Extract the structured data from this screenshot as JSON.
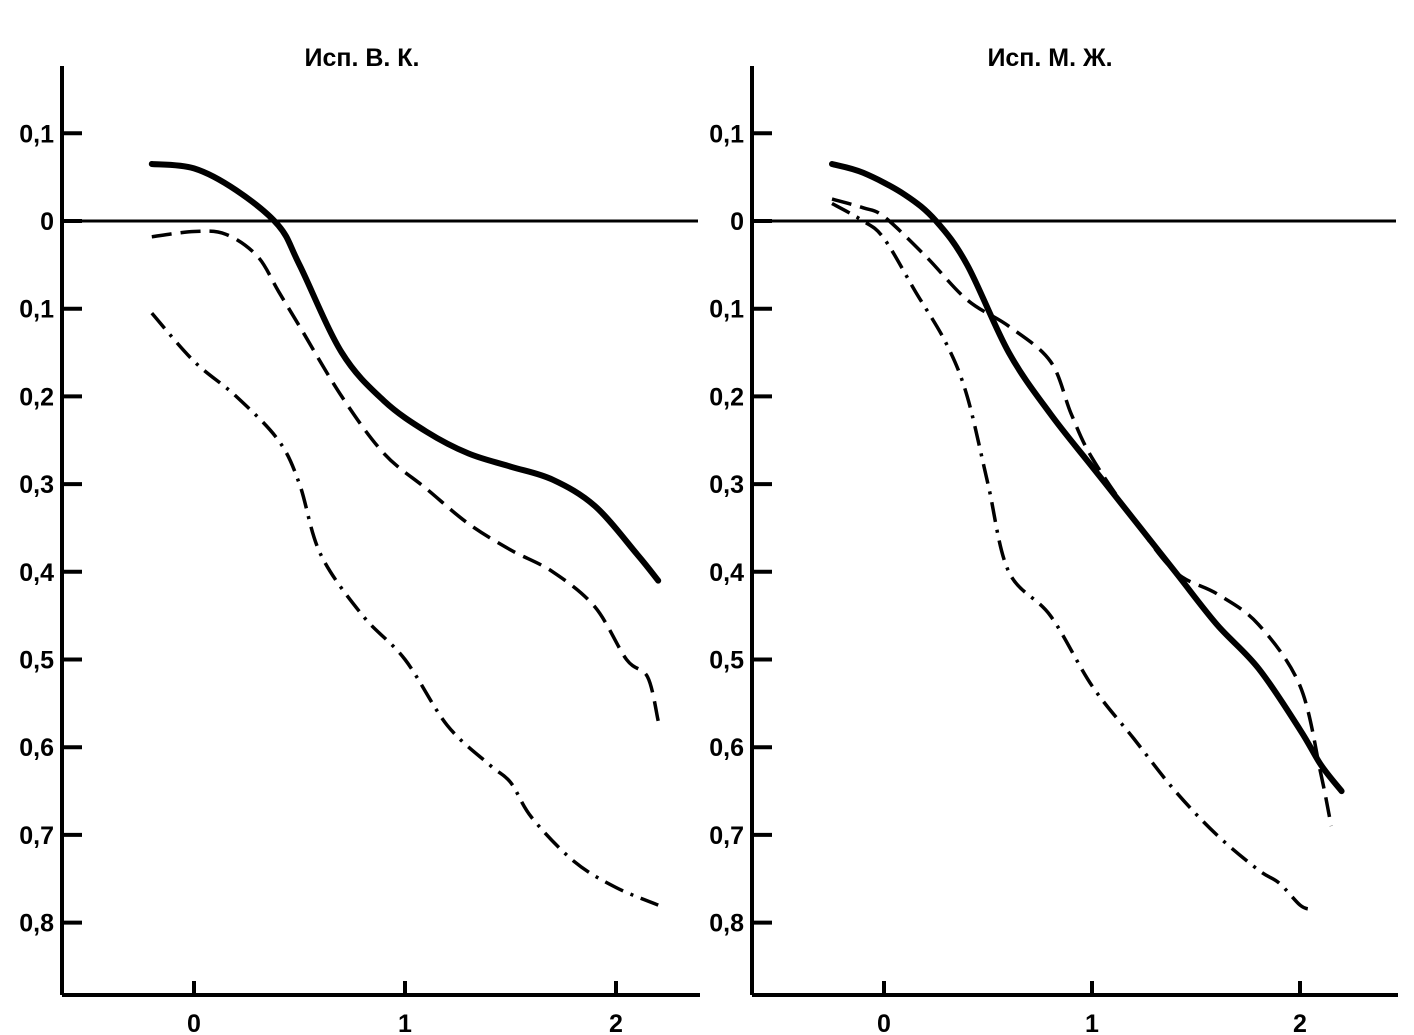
{
  "chart_data": [
    {
      "type": "line",
      "title": "Исп. В. К.",
      "xlabel": "",
      "ylabel": "",
      "xlim": [
        -0.63,
        2.4
      ],
      "ylim": [
        -0.89,
        0.18
      ],
      "x_ticks": [
        0,
        1,
        2
      ],
      "x_tick_labels": [
        "0",
        "1",
        "2"
      ],
      "y_ticks": [
        0.1,
        0,
        -0.1,
        -0.2,
        -0.3,
        -0.4,
        -0.5,
        -0.6,
        -0.7,
        -0.8
      ],
      "y_tick_labels": [
        "0,1",
        "0",
        "0,1",
        "0,2",
        "0,3",
        "0,4",
        "0,5",
        "0,6",
        "0,7",
        "0,8"
      ],
      "zero_line": true,
      "grid": false,
      "series": [
        {
          "style": "solid",
          "x": [
            -0.2,
            0.0,
            0.2,
            0.4,
            0.5,
            0.7,
            0.9,
            1.1,
            1.3,
            1.5,
            1.7,
            1.9,
            2.1,
            2.2
          ],
          "y": [
            0.065,
            0.06,
            0.035,
            -0.005,
            -0.05,
            -0.15,
            -0.205,
            -0.24,
            -0.265,
            -0.28,
            -0.295,
            -0.325,
            -0.38,
            -0.41
          ]
        },
        {
          "style": "dashed",
          "x": [
            -0.2,
            0.0,
            0.15,
            0.3,
            0.4,
            0.5,
            0.7,
            0.9,
            1.1,
            1.3,
            1.5,
            1.7,
            1.9,
            2.05,
            2.15,
            2.2
          ],
          "y": [
            -0.018,
            -0.012,
            -0.015,
            -0.04,
            -0.08,
            -0.12,
            -0.2,
            -0.265,
            -0.305,
            -0.345,
            -0.375,
            -0.4,
            -0.44,
            -0.5,
            -0.52,
            -0.57
          ]
        },
        {
          "style": "dash-dot",
          "x": [
            -0.2,
            0.0,
            0.2,
            0.4,
            0.5,
            0.6,
            0.8,
            1.0,
            1.2,
            1.4,
            1.5,
            1.6,
            1.8,
            2.0,
            2.2
          ],
          "y": [
            -0.105,
            -0.16,
            -0.2,
            -0.25,
            -0.3,
            -0.38,
            -0.45,
            -0.5,
            -0.575,
            -0.62,
            -0.64,
            -0.68,
            -0.73,
            -0.76,
            -0.78
          ]
        }
      ]
    },
    {
      "type": "line",
      "title": "Исп. М. Ж.",
      "xlabel": "",
      "ylabel": "",
      "xlim": [
        -0.63,
        2.4
      ],
      "ylim": [
        -0.89,
        0.18
      ],
      "x_ticks": [
        0,
        1,
        2
      ],
      "x_tick_labels": [
        "0",
        "1",
        "2"
      ],
      "y_ticks": [
        0.1,
        0,
        -0.1,
        -0.2,
        -0.3,
        -0.4,
        -0.5,
        -0.6,
        -0.7,
        -0.8
      ],
      "y_tick_labels": [
        "0,1",
        "0",
        "0,1",
        "0,2",
        "0,3",
        "0,4",
        "0,5",
        "0,6",
        "0,7",
        "0,8"
      ],
      "zero_line": true,
      "grid": false,
      "series": [
        {
          "style": "solid",
          "x": [
            -0.25,
            -0.1,
            0.1,
            0.25,
            0.4,
            0.6,
            0.8,
            1.0,
            1.2,
            1.4,
            1.6,
            1.8,
            2.0,
            2.1,
            2.2
          ],
          "y": [
            0.065,
            0.055,
            0.03,
            0.0,
            -0.05,
            -0.15,
            -0.22,
            -0.28,
            -0.34,
            -0.4,
            -0.46,
            -0.51,
            -0.58,
            -0.62,
            -0.65
          ]
        },
        {
          "style": "dashed",
          "x": [
            -0.25,
            -0.1,
            0.0,
            0.2,
            0.4,
            0.6,
            0.8,
            0.9,
            1.0,
            1.2,
            1.4,
            1.6,
            1.8,
            2.0,
            2.1,
            2.15
          ],
          "y": [
            0.025,
            0.015,
            0.005,
            -0.04,
            -0.09,
            -0.12,
            -0.16,
            -0.22,
            -0.27,
            -0.34,
            -0.4,
            -0.425,
            -0.46,
            -0.53,
            -0.63,
            -0.69
          ]
        },
        {
          "style": "dash-dot",
          "x": [
            -0.25,
            -0.1,
            0.0,
            0.15,
            0.3,
            0.4,
            0.5,
            0.6,
            0.8,
            1.0,
            1.2,
            1.4,
            1.6,
            1.8,
            1.9,
            2.0,
            2.05
          ],
          "y": [
            0.02,
            0.0,
            -0.02,
            -0.08,
            -0.14,
            -0.2,
            -0.3,
            -0.4,
            -0.45,
            -0.53,
            -0.59,
            -0.65,
            -0.7,
            -0.74,
            -0.755,
            -0.78,
            -0.785
          ]
        }
      ]
    }
  ]
}
